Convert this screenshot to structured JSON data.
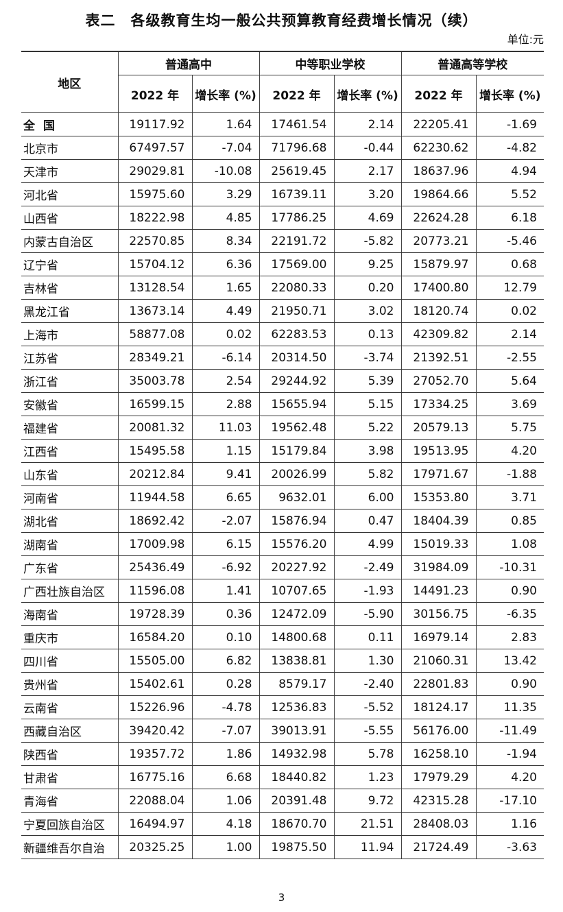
{
  "title": "表二　各级教育生均一般公共预算教育经费增长情况（续）",
  "unit": "单位:元",
  "table": {
    "region_header": "地区",
    "groups": [
      "普通高中",
      "中等职业学校",
      "普通高等学校"
    ],
    "subheaders": [
      "2022 年",
      "增长率 (%)",
      "2022 年",
      "增长率 (%)",
      "2022 年",
      "增长率 (%)"
    ],
    "rows": [
      [
        "全国",
        "19117.92",
        "1.64",
        "17461.54",
        "2.14",
        "22205.41",
        "-1.69"
      ],
      [
        "北京市",
        "67497.57",
        "-7.04",
        "71796.68",
        "-0.44",
        "62230.62",
        "-4.82"
      ],
      [
        "天津市",
        "29029.81",
        "-10.08",
        "25619.45",
        "2.17",
        "18637.96",
        "4.94"
      ],
      [
        "河北省",
        "15975.60",
        "3.29",
        "16739.11",
        "3.20",
        "19864.66",
        "5.52"
      ],
      [
        "山西省",
        "18222.98",
        "4.85",
        "17786.25",
        "4.69",
        "22624.28",
        "6.18"
      ],
      [
        "内蒙古自治区",
        "22570.85",
        "8.34",
        "22191.72",
        "-5.82",
        "20773.21",
        "-5.46"
      ],
      [
        "辽宁省",
        "15704.12",
        "6.36",
        "17569.00",
        "9.25",
        "15879.97",
        "0.68"
      ],
      [
        "吉林省",
        "13128.54",
        "1.65",
        "22080.33",
        "0.20",
        "17400.80",
        "12.79"
      ],
      [
        "黑龙江省",
        "13673.14",
        "4.49",
        "21950.71",
        "3.02",
        "18120.74",
        "0.02"
      ],
      [
        "上海市",
        "58877.08",
        "0.02",
        "62283.53",
        "0.13",
        "42309.82",
        "2.14"
      ],
      [
        "江苏省",
        "28349.21",
        "-6.14",
        "20314.50",
        "-3.74",
        "21392.51",
        "-2.55"
      ],
      [
        "浙江省",
        "35003.78",
        "2.54",
        "29244.92",
        "5.39",
        "27052.70",
        "5.64"
      ],
      [
        "安徽省",
        "16599.15",
        "2.88",
        "15655.94",
        "5.15",
        "17334.25",
        "3.69"
      ],
      [
        "福建省",
        "20081.32",
        "11.03",
        "19562.48",
        "5.22",
        "20579.13",
        "5.75"
      ],
      [
        "江西省",
        "15495.58",
        "1.15",
        "15179.84",
        "3.98",
        "19513.95",
        "4.20"
      ],
      [
        "山东省",
        "20212.84",
        "9.41",
        "20026.99",
        "5.82",
        "17971.67",
        "-1.88"
      ],
      [
        "河南省",
        "11944.58",
        "6.65",
        "9632.01",
        "6.00",
        "15353.80",
        "3.71"
      ],
      [
        "湖北省",
        "18692.42",
        "-2.07",
        "15876.94",
        "0.47",
        "18404.39",
        "0.85"
      ],
      [
        "湖南省",
        "17009.98",
        "6.15",
        "15576.20",
        "4.99",
        "15019.33",
        "1.08"
      ],
      [
        "广东省",
        "25436.49",
        "-6.92",
        "20227.92",
        "-2.49",
        "31984.09",
        "-10.31"
      ],
      [
        "广西壮族自治区",
        "11596.08",
        "1.41",
        "10707.65",
        "-1.93",
        "14491.23",
        "0.90"
      ],
      [
        "海南省",
        "19728.39",
        "0.36",
        "12472.09",
        "-5.90",
        "30156.75",
        "-6.35"
      ],
      [
        "重庆市",
        "16584.20",
        "0.10",
        "14800.68",
        "0.11",
        "16979.14",
        "2.83"
      ],
      [
        "四川省",
        "15505.00",
        "6.82",
        "13838.81",
        "1.30",
        "21060.31",
        "13.42"
      ],
      [
        "贵州省",
        "15402.61",
        "0.28",
        "8579.17",
        "-2.40",
        "22801.83",
        "0.90"
      ],
      [
        "云南省",
        "15226.96",
        "-4.78",
        "12536.83",
        "-5.52",
        "18124.17",
        "11.35"
      ],
      [
        "西藏自治区",
        "39420.42",
        "-7.07",
        "39013.91",
        "-5.55",
        "56176.00",
        "-11.49"
      ],
      [
        "陕西省",
        "19357.72",
        "1.86",
        "14932.98",
        "5.78",
        "16258.10",
        "-1.94"
      ],
      [
        "甘肃省",
        "16775.16",
        "6.68",
        "18440.82",
        "1.23",
        "17979.29",
        "4.20"
      ],
      [
        "青海省",
        "22088.04",
        "1.06",
        "20391.48",
        "9.72",
        "42315.28",
        "-17.10"
      ],
      [
        "宁夏回族自治区",
        "16494.97",
        "4.18",
        "18670.70",
        "21.51",
        "28408.03",
        "1.16"
      ],
      [
        "新疆维吾尔自治",
        "20325.25",
        "1.00",
        "19875.50",
        "11.94",
        "21724.49",
        "-3.63"
      ]
    ]
  },
  "page_number": "3"
}
